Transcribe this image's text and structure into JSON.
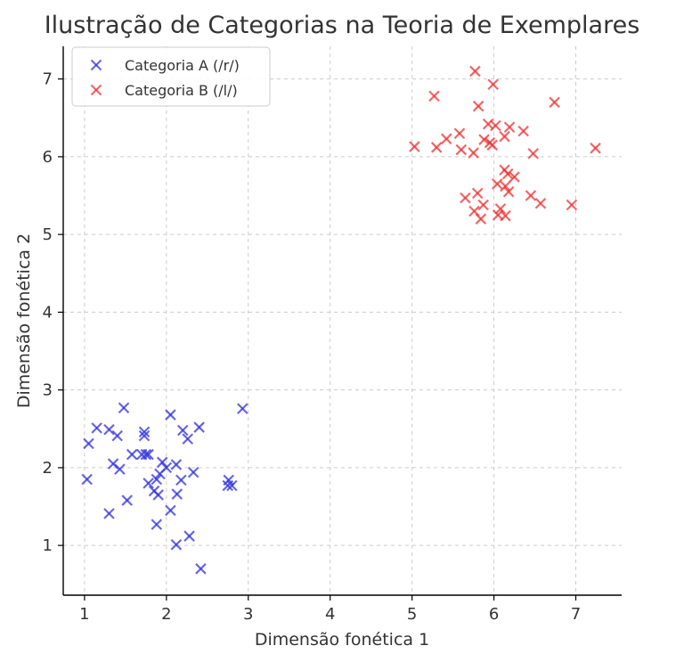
{
  "chart_data": {
    "type": "scatter",
    "title": "Ilustração de Categorias na Teoria de Exemplares",
    "xlabel": "Dimensão fonética 1",
    "ylabel": "Dimensão fonética 2",
    "xlim": [
      0.74,
      7.56
    ],
    "ylim": [
      0.36,
      7.42
    ],
    "xticks": [
      1,
      2,
      3,
      4,
      5,
      6,
      7
    ],
    "yticks": [
      1,
      2,
      3,
      4,
      5,
      6,
      7
    ],
    "grid": true,
    "legend_position": "top-left",
    "marker": "x",
    "series": [
      {
        "name": "Categoria A (/r/)",
        "color": "#3333dd",
        "points": [
          [
            1.48,
            2.77
          ],
          [
            2.93,
            2.76
          ],
          [
            2.05,
            2.68
          ],
          [
            1.15,
            2.51
          ],
          [
            1.3,
            2.49
          ],
          [
            2.4,
            2.52
          ],
          [
            1.73,
            2.46
          ],
          [
            2.2,
            2.48
          ],
          [
            1.4,
            2.41
          ],
          [
            1.73,
            2.41
          ],
          [
            2.26,
            2.37
          ],
          [
            1.05,
            2.31
          ],
          [
            1.58,
            2.17
          ],
          [
            1.7,
            2.17
          ],
          [
            1.75,
            2.17
          ],
          [
            1.78,
            2.17
          ],
          [
            1.35,
            2.05
          ],
          [
            1.95,
            2.07
          ],
          [
            2.12,
            2.04
          ],
          [
            1.43,
            1.98
          ],
          [
            2.0,
            2.0
          ],
          [
            2.33,
            1.94
          ],
          [
            1.92,
            1.92
          ],
          [
            1.03,
            1.85
          ],
          [
            1.88,
            1.85
          ],
          [
            2.18,
            1.84
          ],
          [
            2.76,
            1.84
          ],
          [
            1.78,
            1.8
          ],
          [
            2.75,
            1.77
          ],
          [
            2.8,
            1.77
          ],
          [
            1.85,
            1.7
          ],
          [
            1.9,
            1.65
          ],
          [
            2.13,
            1.66
          ],
          [
            1.52,
            1.58
          ],
          [
            2.05,
            1.45
          ],
          [
            1.3,
            1.41
          ],
          [
            1.88,
            1.27
          ],
          [
            2.28,
            1.12
          ],
          [
            2.12,
            1.01
          ],
          [
            2.42,
            0.7
          ]
        ]
      },
      {
        "name": "Categoria B (/l/)",
        "color": "#ee3333",
        "points": [
          [
            5.77,
            7.1
          ],
          [
            5.99,
            6.93
          ],
          [
            5.27,
            6.78
          ],
          [
            6.74,
            6.7
          ],
          [
            5.81,
            6.65
          ],
          [
            5.93,
            6.42
          ],
          [
            6.02,
            6.4
          ],
          [
            6.19,
            6.38
          ],
          [
            6.36,
            6.33
          ],
          [
            5.58,
            6.3
          ],
          [
            6.13,
            6.26
          ],
          [
            5.42,
            6.23
          ],
          [
            5.88,
            6.22
          ],
          [
            5.95,
            6.18
          ],
          [
            5.98,
            6.15
          ],
          [
            5.03,
            6.13
          ],
          [
            5.3,
            6.12
          ],
          [
            7.24,
            6.11
          ],
          [
            5.6,
            6.09
          ],
          [
            5.75,
            6.05
          ],
          [
            6.48,
            6.04
          ],
          [
            6.13,
            5.83
          ],
          [
            6.17,
            5.78
          ],
          [
            6.25,
            5.74
          ],
          [
            6.04,
            5.65
          ],
          [
            6.14,
            5.62
          ],
          [
            6.18,
            5.55
          ],
          [
            5.8,
            5.53
          ],
          [
            6.45,
            5.5
          ],
          [
            5.65,
            5.47
          ],
          [
            6.57,
            5.4
          ],
          [
            5.87,
            5.38
          ],
          [
            6.95,
            5.38
          ],
          [
            6.08,
            5.33
          ],
          [
            5.76,
            5.3
          ],
          [
            6.05,
            5.25
          ],
          [
            6.14,
            5.24
          ],
          [
            5.84,
            5.2
          ]
        ]
      }
    ]
  }
}
